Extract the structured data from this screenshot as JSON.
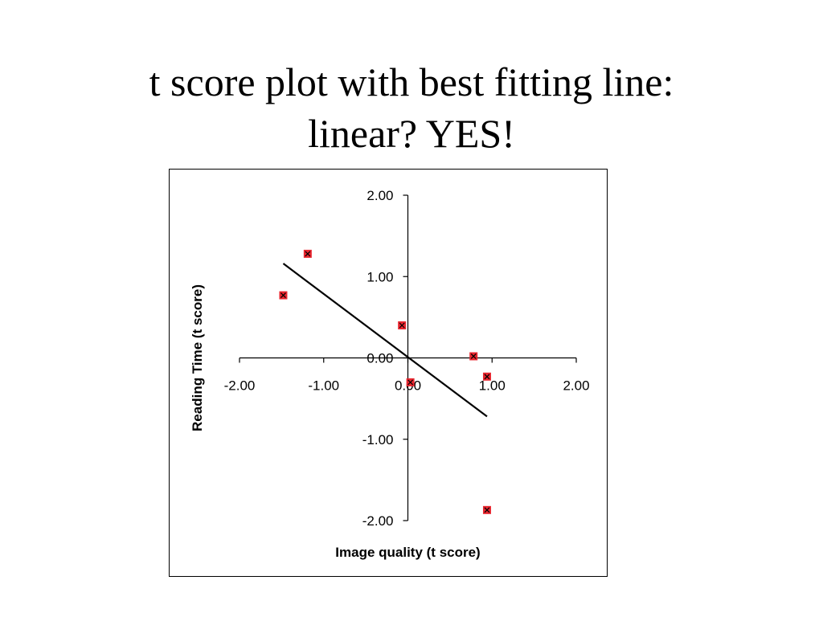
{
  "title": {
    "line1": "t score plot with best fitting line:",
    "line2": "linear?  YES!"
  },
  "chart_data": {
    "type": "scatter",
    "xlabel": "Image quality (t score)",
    "ylabel": "Reading Time (t score)",
    "xlim": [
      -2,
      2
    ],
    "ylim": [
      -2,
      2
    ],
    "x_ticks": [
      -2,
      -1,
      0,
      1,
      2
    ],
    "y_ticks": [
      -2,
      -1,
      0,
      1,
      2
    ],
    "x_tick_labels": [
      "-2.00",
      "-1.00",
      "0.00",
      "1.00",
      "2.00"
    ],
    "y_tick_labels": [
      "-2.00",
      "-1.00",
      "0.00",
      "1.00",
      "2.00"
    ],
    "points": [
      {
        "x": -1.48,
        "y": 0.77
      },
      {
        "x": -1.19,
        "y": 1.28
      },
      {
        "x": -0.07,
        "y": 0.4
      },
      {
        "x": 0.03,
        "y": -0.3
      },
      {
        "x": 0.78,
        "y": 0.02
      },
      {
        "x": 0.94,
        "y": -0.23
      },
      {
        "x": 0.94,
        "y": -1.87
      }
    ],
    "fit_line": {
      "x": [
        -1.48,
        0.94
      ],
      "y": [
        1.16,
        -0.72
      ]
    },
    "grid": false,
    "legend": "none",
    "colors": {
      "marker_fill": "#e8262f",
      "marker_x": "#000000",
      "line": "#000000"
    }
  }
}
